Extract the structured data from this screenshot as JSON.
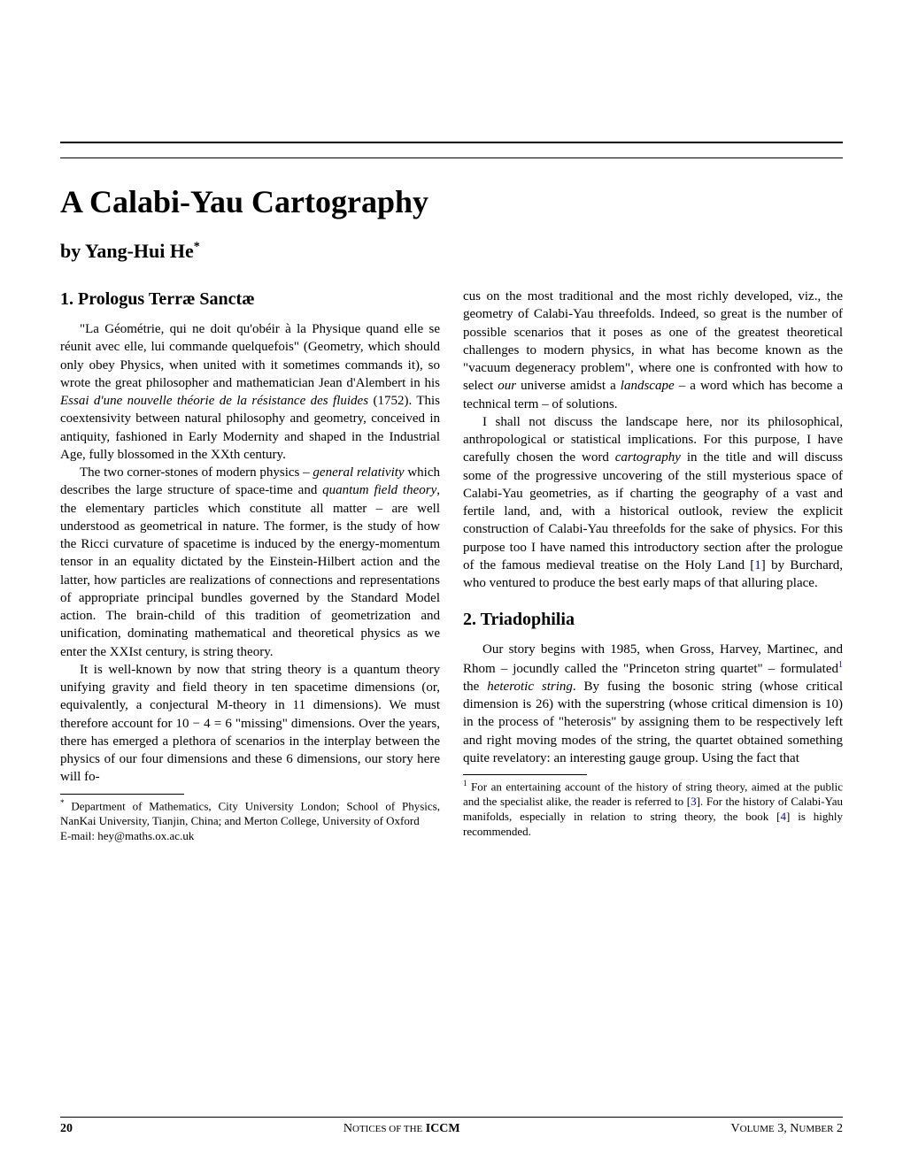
{
  "title": "A Calabi-Yau Cartography",
  "author_prefix": "by ",
  "author_name": "Yang-Hui He",
  "author_sup": "*",
  "section1": {
    "heading": "1. Prologus Terræ Sanctæ",
    "para1_a": "\"La Géométrie, qui ne doit qu'obéir à la Physique quand elle se réunit avec elle, lui commande quelquefois\" (Geometry, which should only obey Physics, when united with it sometimes commands it), so wrote the great philosopher and mathematician Jean d'Alembert in his ",
    "para1_b": "Essai d'une nouvelle théorie de la résistance des fluides",
    "para1_c": " (1752). This coextensivity between natural philosophy and geometry, conceived in antiquity, fashioned in Early Modernity and shaped in the Industrial Age, fully blossomed in the XXth century.",
    "para2_a": "The two corner-stones of modern physics – ",
    "para2_b": "general relativity",
    "para2_c": " which describes the large structure of space-time and ",
    "para2_d": "quantum field theory",
    "para2_e": ", the elementary particles which constitute all matter – are well understood as geometrical in nature. The former, is the study of how the Ricci curvature of spacetime is induced by the energy-momentum tensor in an equality dictated by the Einstein-Hilbert action and the latter, how particles are realizations of connections and representations of appropriate principal bundles governed by the Standard Model action. The brain-child of this tradition of geometrization and unification, dominating mathematical and theoretical physics as we enter the XXIst century, is string theory.",
    "para3": "It is well-known by now that string theory is a quantum theory unifying gravity and field theory in ten spacetime dimensions (or, equivalently, a conjectural M-theory in 11 dimensions). We must therefore account for 10 − 4 = 6 \"missing\" dimensions. Over the years, there has emerged a plethora of scenarios in the interplay between the physics of our four dimensions and these 6 dimensions, our story here will fo-"
  },
  "col2": {
    "para1_a": "cus on the most traditional and the most richly developed, viz., the geometry of Calabi-Yau threefolds. Indeed, so great is the number of possible scenarios that it poses as one of the greatest theoretical challenges to modern physics, in what has become known as the \"vacuum degeneracy problem\", where one is confronted with how to select ",
    "para1_b": "our",
    "para1_c": " universe amidst a ",
    "para1_d": "landscape",
    "para1_e": " – a word which has become a technical term – of solutions.",
    "para2_a": "I shall not discuss the landscape here, nor its philosophical, anthropological or statistical implications. For this purpose, I have carefully chosen the word ",
    "para2_b": "cartography",
    "para2_c": " in the title and will discuss some of the progressive uncovering of the still mysterious space of Calabi-Yau geometries, as if charting the geography of a vast and fertile land, and, with a historical outlook, review the explicit construction of Calabi-Yau threefolds for the sake of physics. For this purpose too I have named this introductory section after the prologue of the famous medieval treatise on the Holy Land [",
    "para2_ref": "1",
    "para2_d": "] by Burchard, who ventured to produce the best early maps of that alluring place."
  },
  "section2": {
    "heading": "2. Triadophilia",
    "para1_a": "Our story begins with 1985, when Gross, Harvey, Martinec, and Rhom – jocundly called the \"Princeton string quartet\" – formulated",
    "para1_sup": "1",
    "para1_b": " the ",
    "para1_c": "heterotic string",
    "para1_d": ". By fusing the bosonic string (whose critical dimension is 26) with the superstring (whose critical dimension is 10) in the process of \"heterosis\" by assigning them to be respectively left and right moving modes of the string, the quartet obtained something quite revelatory: an interesting gauge group. Using the fact that"
  },
  "footnote_left": {
    "sup": "*",
    "line1": " Department of Mathematics, City University London; School of Physics, NanKai University, Tianjin, China; and Merton College, University of Oxford",
    "line2": "E-mail: hey@maths.ox.ac.uk"
  },
  "footnote_right": {
    "sup": "1",
    "text_a": " For an entertaining account of the history of string theory, aimed at the public and the specialist alike, the reader is referred to [",
    "ref1": "3",
    "text_b": "]. For the history of Calabi-Yau manifolds, especially in relation to string theory, the book [",
    "ref2": "4",
    "text_c": "] is highly recommended."
  },
  "footer": {
    "page": "20",
    "center_a": "Notices of the ",
    "center_b": "ICCM",
    "right_a": "Volume ",
    "right_b": "3, ",
    "right_c": "Number ",
    "right_d": "2"
  }
}
